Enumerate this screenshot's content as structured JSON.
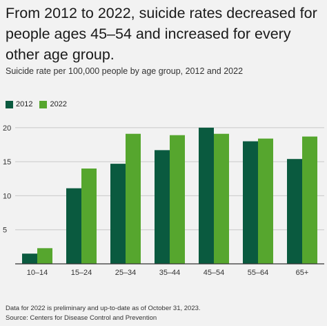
{
  "title": "From 2012 to 2022, suicide rates decreased for people ages 45–54 and increased for every other age group.",
  "subtitle": "Suicide rate per 100,000 people by age group, 2012 and 2022",
  "colors": {
    "2012": "#0a5a3f",
    "2022": "#56a62e",
    "grid": "#c8c8c8",
    "axis": "#333333"
  },
  "chart_data": {
    "type": "bar",
    "title": "Suicide rate per 100,000 people by age group, 2012 and 2022",
    "categories": [
      "10–14",
      "15–24",
      "25–34",
      "35–44",
      "45–54",
      "55–64",
      "65+"
    ],
    "series": [
      {
        "name": "2012",
        "values": [
          1.5,
          11.1,
          14.7,
          16.7,
          20.0,
          18.0,
          15.4
        ]
      },
      {
        "name": "2022",
        "values": [
          2.3,
          14.0,
          19.1,
          18.9,
          19.1,
          18.4,
          18.7
        ]
      }
    ],
    "ylim": [
      0,
      21
    ],
    "yticks": [
      5,
      10,
      15,
      20
    ],
    "xlabel": "",
    "ylabel": "",
    "legend": "top-left",
    "grid": true
  },
  "footnotes": {
    "note": "Data for 2022 is preliminary and up-to-date as of October 31, 2023.",
    "source": "Source: Centers for Disease Control and Prevention"
  }
}
